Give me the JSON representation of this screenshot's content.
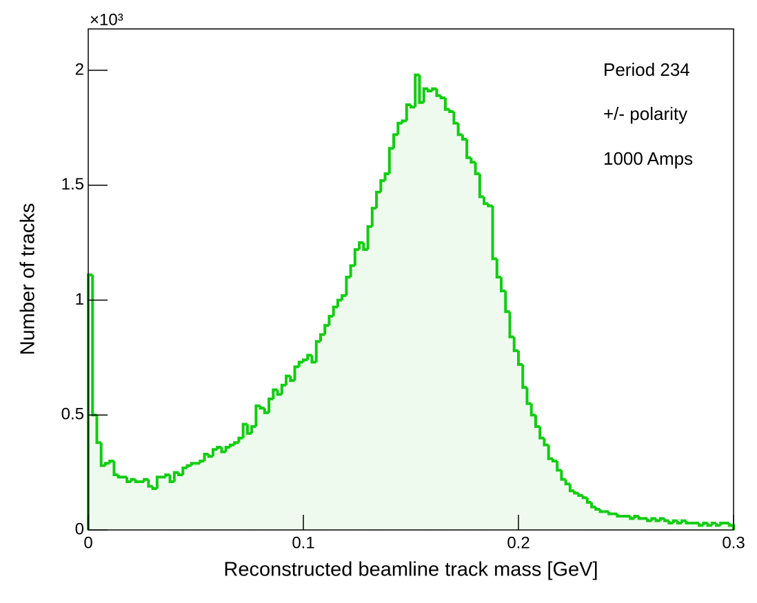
{
  "chart_data": {
    "type": "histogram",
    "xlabel": "Reconstructed beamline track mass [GeV]",
    "ylabel": "Number of tracks",
    "y_multiplier": "×10³",
    "annotations": [
      "Period 234",
      "+/- polarity",
      "1000 Amps"
    ],
    "color": "#11cc11",
    "fill_color": "#eefaee",
    "xlim": [
      0,
      0.3
    ],
    "xticks": [
      0,
      0.1,
      0.2,
      0.3
    ],
    "ylim": [
      0,
      2.18
    ],
    "yticks": [
      0,
      0.5,
      1,
      1.5,
      2
    ],
    "bins": [
      0,
      0.002,
      0.004,
      0.006,
      0.008,
      0.01,
      0.012,
      0.014,
      0.016,
      0.018,
      0.02,
      0.022,
      0.024,
      0.026,
      0.028,
      0.03,
      0.032,
      0.034,
      0.036,
      0.038,
      0.04,
      0.042,
      0.044,
      0.046,
      0.048,
      0.05,
      0.052,
      0.054,
      0.056,
      0.058,
      0.06,
      0.062,
      0.064,
      0.066,
      0.068,
      0.07,
      0.072,
      0.074,
      0.076,
      0.078,
      0.08,
      0.082,
      0.084,
      0.086,
      0.088,
      0.09,
      0.092,
      0.094,
      0.096,
      0.098,
      0.1,
      0.102,
      0.104,
      0.106,
      0.108,
      0.11,
      0.112,
      0.114,
      0.116,
      0.118,
      0.12,
      0.122,
      0.124,
      0.126,
      0.128,
      0.13,
      0.132,
      0.134,
      0.136,
      0.138,
      0.14,
      0.142,
      0.144,
      0.146,
      0.148,
      0.15,
      0.152,
      0.154,
      0.156,
      0.158,
      0.16,
      0.162,
      0.164,
      0.166,
      0.168,
      0.17,
      0.172,
      0.174,
      0.176,
      0.178,
      0.18,
      0.182,
      0.184,
      0.186,
      0.188,
      0.19,
      0.192,
      0.194,
      0.196,
      0.198,
      0.2,
      0.202,
      0.204,
      0.206,
      0.208,
      0.21,
      0.212,
      0.214,
      0.216,
      0.218,
      0.22,
      0.222,
      0.224,
      0.226,
      0.228,
      0.23,
      0.232,
      0.234,
      0.236,
      0.238,
      0.24,
      0.242,
      0.244,
      0.246,
      0.248,
      0.25,
      0.252,
      0.254,
      0.256,
      0.258,
      0.26,
      0.262,
      0.264,
      0.266,
      0.268,
      0.27,
      0.272,
      0.274,
      0.276,
      0.278,
      0.28,
      0.282,
      0.284,
      0.286,
      0.288,
      0.29,
      0.292,
      0.294,
      0.296,
      0.298,
      0.3
    ],
    "values": [
      1.11,
      0.5,
      0.38,
      0.28,
      0.29,
      0.3,
      0.24,
      0.23,
      0.23,
      0.21,
      0.22,
      0.21,
      0.21,
      0.22,
      0.19,
      0.18,
      0.23,
      0.23,
      0.24,
      0.21,
      0.25,
      0.24,
      0.27,
      0.28,
      0.29,
      0.29,
      0.3,
      0.33,
      0.32,
      0.35,
      0.36,
      0.34,
      0.36,
      0.37,
      0.38,
      0.4,
      0.46,
      0.42,
      0.45,
      0.54,
      0.53,
      0.51,
      0.57,
      0.61,
      0.59,
      0.63,
      0.67,
      0.65,
      0.71,
      0.73,
      0.74,
      0.76,
      0.73,
      0.82,
      0.85,
      0.89,
      0.93,
      0.97,
      1.0,
      1.02,
      1.1,
      1.15,
      1.22,
      1.25,
      1.22,
      1.32,
      1.4,
      1.47,
      1.52,
      1.55,
      1.66,
      1.72,
      1.77,
      1.78,
      1.85,
      1.84,
      1.98,
      1.86,
      1.92,
      1.91,
      1.92,
      1.89,
      1.88,
      1.83,
      1.82,
      1.77,
      1.72,
      1.7,
      1.62,
      1.6,
      1.55,
      1.45,
      1.42,
      1.41,
      1.18,
      1.1,
      1.04,
      0.95,
      0.84,
      0.78,
      0.72,
      0.62,
      0.55,
      0.5,
      0.45,
      0.4,
      0.37,
      0.31,
      0.3,
      0.26,
      0.22,
      0.2,
      0.17,
      0.16,
      0.15,
      0.14,
      0.12,
      0.1,
      0.09,
      0.08,
      0.08,
      0.07,
      0.07,
      0.06,
      0.06,
      0.06,
      0.05,
      0.06,
      0.05,
      0.05,
      0.04,
      0.05,
      0.04,
      0.05,
      0.04,
      0.03,
      0.04,
      0.03,
      0.04,
      0.03,
      0.03,
      0.03,
      0.02,
      0.03,
      0.02,
      0.03,
      0.02,
      0.03,
      0.03,
      0.02
    ]
  }
}
